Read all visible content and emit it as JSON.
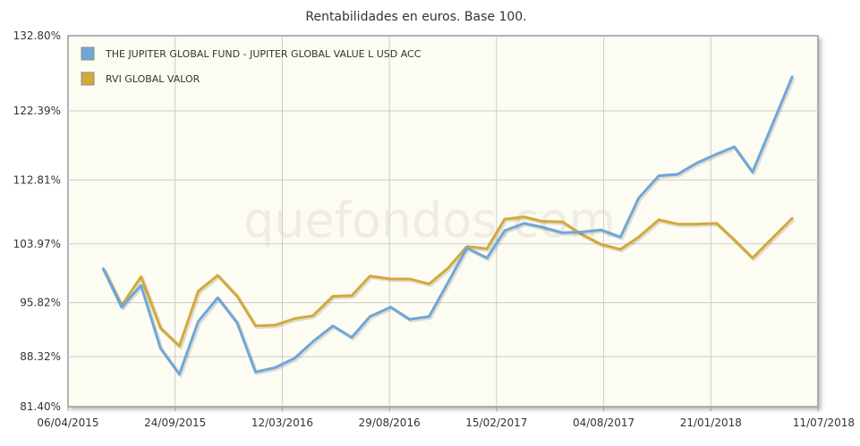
{
  "chart_data": {
    "type": "line",
    "title": "Rentabilidades en euros. Base 100.",
    "watermark": "quefondos.com",
    "xlabel": "",
    "ylabel": "",
    "x_ticks": [
      "06/04/2015",
      "24/09/2015",
      "12/03/2016",
      "29/08/2016",
      "15/02/2017",
      "04/08/2017",
      "21/01/2018",
      "11/07/2018"
    ],
    "y_ticks": [
      "81.40%",
      "88.32%",
      "95.82%",
      "103.97%",
      "112.81%",
      "122.39%",
      "132.80%"
    ],
    "y_tick_values": [
      81.4,
      88.32,
      95.82,
      103.97,
      112.81,
      122.39,
      132.8
    ],
    "x_range": [
      "2015-04-06",
      "2018-07-11"
    ],
    "legend_position": "top-left",
    "grid": true,
    "colors": {
      "plot_background": "#fdfcf3",
      "grid": "#cccccc",
      "axis": "#999999",
      "series_1": "#6fa7d6",
      "series_2": "#d4a93a"
    },
    "series": [
      {
        "name": "THE JUPITER GLOBAL FUND - JUPITER GLOBAL VALUE L USD ACC",
        "color": "#6fa7d6",
        "x": [
          "2015-06-01",
          "2015-06-30",
          "2015-07-31",
          "2015-08-31",
          "2015-09-30",
          "2015-10-30",
          "2015-11-30",
          "2015-12-31",
          "2016-01-29",
          "2016-02-29",
          "2016-03-31",
          "2016-04-29",
          "2016-05-31",
          "2016-06-30",
          "2016-07-29",
          "2016-08-31",
          "2016-09-30",
          "2016-10-31",
          "2016-11-30",
          "2016-12-30",
          "2017-01-31",
          "2017-02-28",
          "2017-03-31",
          "2017-04-28",
          "2017-05-31",
          "2017-06-30",
          "2017-07-31",
          "2017-08-31",
          "2017-09-29",
          "2017-10-31",
          "2017-11-30",
          "2017-12-29",
          "2018-01-31",
          "2018-02-28",
          "2018-03-29",
          "2018-04-30",
          "2018-05-31"
        ],
        "values": [
          100.5,
          95.2,
          98.2,
          89.5,
          85.9,
          93.2,
          96.5,
          93.0,
          86.2,
          86.8,
          88.1,
          90.4,
          92.6,
          91.0,
          93.9,
          95.2,
          93.5,
          93.9,
          98.6,
          103.4,
          102.0,
          105.8,
          106.8,
          106.3,
          105.5,
          105.6,
          105.9,
          104.9,
          110.3,
          113.4,
          113.6,
          115.1,
          116.4,
          117.4,
          113.9,
          120.6,
          127.1
        ]
      },
      {
        "name": "RVI GLOBAL VALOR",
        "color": "#d4a93a",
        "x": [
          "2015-06-01",
          "2015-06-30",
          "2015-07-31",
          "2015-08-31",
          "2015-09-30",
          "2015-10-30",
          "2015-11-30",
          "2015-12-31",
          "2016-01-29",
          "2016-02-29",
          "2016-03-31",
          "2016-04-29",
          "2016-05-31",
          "2016-06-30",
          "2016-07-29",
          "2016-08-31",
          "2016-09-30",
          "2016-10-31",
          "2016-11-30",
          "2016-12-30",
          "2017-01-31",
          "2017-02-28",
          "2017-03-31",
          "2017-04-28",
          "2017-05-31",
          "2017-06-30",
          "2017-07-31",
          "2017-08-31",
          "2017-09-29",
          "2017-10-31",
          "2017-11-30",
          "2017-12-29",
          "2018-01-31",
          "2018-02-28",
          "2018-03-29",
          "2018-04-30",
          "2018-05-31"
        ],
        "values": [
          100.5,
          95.4,
          99.4,
          92.3,
          89.8,
          97.4,
          99.6,
          96.7,
          92.6,
          92.7,
          93.6,
          94.0,
          96.7,
          96.8,
          99.5,
          99.1,
          99.1,
          98.4,
          100.6,
          103.6,
          103.3,
          107.4,
          107.7,
          107.1,
          107.0,
          105.3,
          103.9,
          103.2,
          104.9,
          107.3,
          106.7,
          106.7,
          106.8,
          104.5,
          102.0,
          104.8,
          107.5
        ]
      }
    ]
  }
}
